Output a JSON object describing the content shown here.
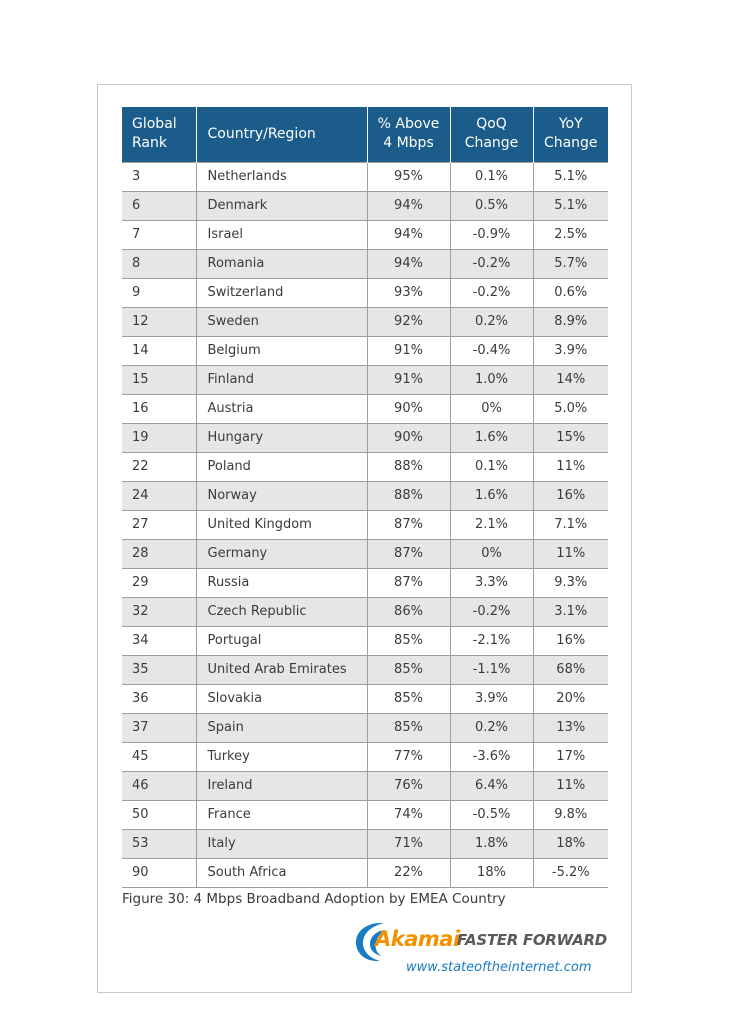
{
  "table": {
    "headers": {
      "rank": [
        "Global",
        "Rank"
      ],
      "country": "Country/Region",
      "above": [
        "% Above",
        "4 Mbps"
      ],
      "qoq": [
        "QoQ",
        "Change"
      ],
      "yoy": [
        "YoY",
        "Change"
      ]
    },
    "rows": [
      {
        "rank": "3",
        "country": "Netherlands",
        "above": "95%",
        "qoq": "0.1%",
        "yoy": "5.1%"
      },
      {
        "rank": "6",
        "country": "Denmark",
        "above": "94%",
        "qoq": "0.5%",
        "yoy": "5.1%"
      },
      {
        "rank": "7",
        "country": "Israel",
        "above": "94%",
        "qoq": "-0.9%",
        "yoy": "2.5%"
      },
      {
        "rank": "8",
        "country": "Romania",
        "above": "94%",
        "qoq": "-0.2%",
        "yoy": "5.7%"
      },
      {
        "rank": "9",
        "country": "Switzerland",
        "above": "93%",
        "qoq": "-0.2%",
        "yoy": "0.6%"
      },
      {
        "rank": "12",
        "country": "Sweden",
        "above": "92%",
        "qoq": "0.2%",
        "yoy": "8.9%"
      },
      {
        "rank": "14",
        "country": "Belgium",
        "above": "91%",
        "qoq": "-0.4%",
        "yoy": "3.9%"
      },
      {
        "rank": "15",
        "country": "Finland",
        "above": "91%",
        "qoq": "1.0%",
        "yoy": "14%"
      },
      {
        "rank": "16",
        "country": "Austria",
        "above": "90%",
        "qoq": "0%",
        "yoy": "5.0%"
      },
      {
        "rank": "19",
        "country": "Hungary",
        "above": "90%",
        "qoq": "1.6%",
        "yoy": "15%"
      },
      {
        "rank": "22",
        "country": "Poland",
        "above": "88%",
        "qoq": "0.1%",
        "yoy": "11%"
      },
      {
        "rank": "24",
        "country": "Norway",
        "above": "88%",
        "qoq": "1.6%",
        "yoy": "16%"
      },
      {
        "rank": "27",
        "country": "United Kingdom",
        "above": "87%",
        "qoq": "2.1%",
        "yoy": "7.1%"
      },
      {
        "rank": "28",
        "country": "Germany",
        "above": "87%",
        "qoq": "0%",
        "yoy": "11%"
      },
      {
        "rank": "29",
        "country": "Russia",
        "above": "87%",
        "qoq": "3.3%",
        "yoy": "9.3%"
      },
      {
        "rank": "32",
        "country": "Czech Republic",
        "above": "86%",
        "qoq": "-0.2%",
        "yoy": "3.1%"
      },
      {
        "rank": "34",
        "country": "Portugal",
        "above": "85%",
        "qoq": "-2.1%",
        "yoy": "16%"
      },
      {
        "rank": "35",
        "country": "United Arab Emirates",
        "above": "85%",
        "qoq": "-1.1%",
        "yoy": "68%"
      },
      {
        "rank": "36",
        "country": "Slovakia",
        "above": "85%",
        "qoq": "3.9%",
        "yoy": "20%"
      },
      {
        "rank": "37",
        "country": "Spain",
        "above": "85%",
        "qoq": "0.2%",
        "yoy": "13%"
      },
      {
        "rank": "45",
        "country": "Turkey",
        "above": "77%",
        "qoq": "-3.6%",
        "yoy": "17%"
      },
      {
        "rank": "46",
        "country": "Ireland",
        "above": "76%",
        "qoq": "6.4%",
        "yoy": "11%"
      },
      {
        "rank": "50",
        "country": "France",
        "above": "74%",
        "qoq": "-0.5%",
        "yoy": "9.8%"
      },
      {
        "rank": "53",
        "country": "Italy",
        "above": "71%",
        "qoq": "1.8%",
        "yoy": "18%"
      },
      {
        "rank": "90",
        "country": "South Africa",
        "above": "22%",
        "qoq": "18%",
        "yoy": "-5.2%"
      }
    ]
  },
  "caption": "Figure 30: 4 Mbps Broadband Adoption by EMEA Country",
  "logo": {
    "brand": "Akamai",
    "tagline": "FASTER FORWARD",
    "url": "www.stateoftheinternet.com",
    "icon": "akamai-swoosh-icon"
  },
  "colors": {
    "header_bg": "#1b5c8a",
    "stripe": "#e6e6e6",
    "brand_orange": "#f39200",
    "brand_blue": "#1b7cc4"
  }
}
